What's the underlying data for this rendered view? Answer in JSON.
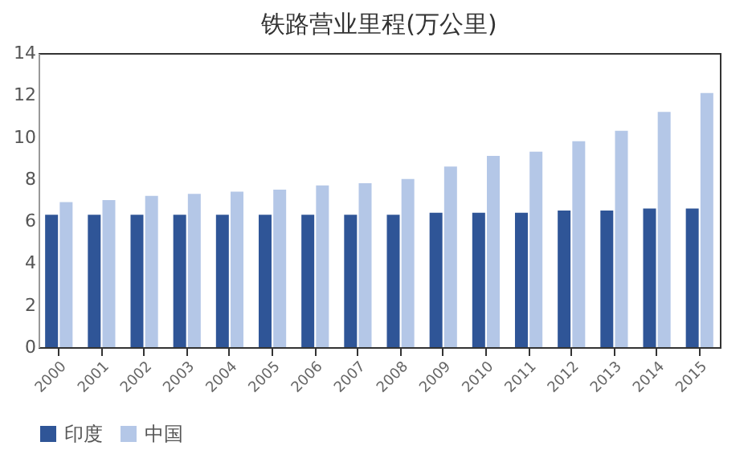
{
  "chart_data": {
    "type": "bar",
    "title": "铁路营业里程(万公里)",
    "categories": [
      "2000",
      "2001",
      "2002",
      "2003",
      "2004",
      "2005",
      "2006",
      "2007",
      "2008",
      "2009",
      "2010",
      "2011",
      "2012",
      "2013",
      "2014",
      "2015"
    ],
    "series": [
      {
        "name": "印度",
        "color": "#2f5597",
        "values": [
          6.3,
          6.3,
          6.3,
          6.3,
          6.3,
          6.3,
          6.3,
          6.3,
          6.3,
          6.4,
          6.4,
          6.4,
          6.5,
          6.5,
          6.6,
          6.6
        ]
      },
      {
        "name": "中国",
        "color": "#b4c7e7",
        "values": [
          6.9,
          7.0,
          7.2,
          7.3,
          7.4,
          7.5,
          7.7,
          7.8,
          8.0,
          8.6,
          9.1,
          9.3,
          9.8,
          10.3,
          11.2,
          12.1
        ]
      }
    ],
    "ylim": [
      0,
      14
    ],
    "yticks": [
      0,
      2,
      4,
      6,
      8,
      10,
      12,
      14
    ],
    "grid": false,
    "legend": "bottom"
  }
}
